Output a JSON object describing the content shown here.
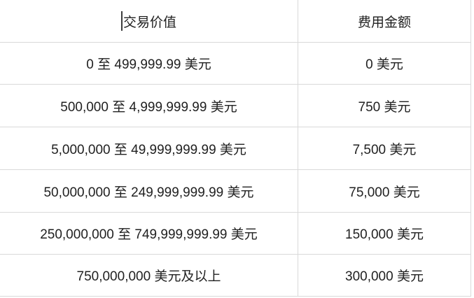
{
  "table": {
    "headers": [
      "交易价值",
      "费用金额"
    ],
    "rows": [
      [
        "0 至 499,999.99 美元",
        "0 美元"
      ],
      [
        "500,000 至 4,999,999.99 美元",
        "750 美元"
      ],
      [
        "5,000,000 至 49,999,999.99 美元",
        "7,500 美元"
      ],
      [
        "50,000,000 至 249,999,999.99 美元",
        "75,000 美元"
      ],
      [
        "250,000,000 至 749,999,999.99 美元",
        "150,000 美元"
      ],
      [
        "750,000,000 美元及以上",
        "300,000 美元"
      ]
    ]
  },
  "colors": {
    "border": "#d9d9d9",
    "text": "#212121",
    "background": "#ffffff",
    "caret": "#3c3c3c"
  }
}
